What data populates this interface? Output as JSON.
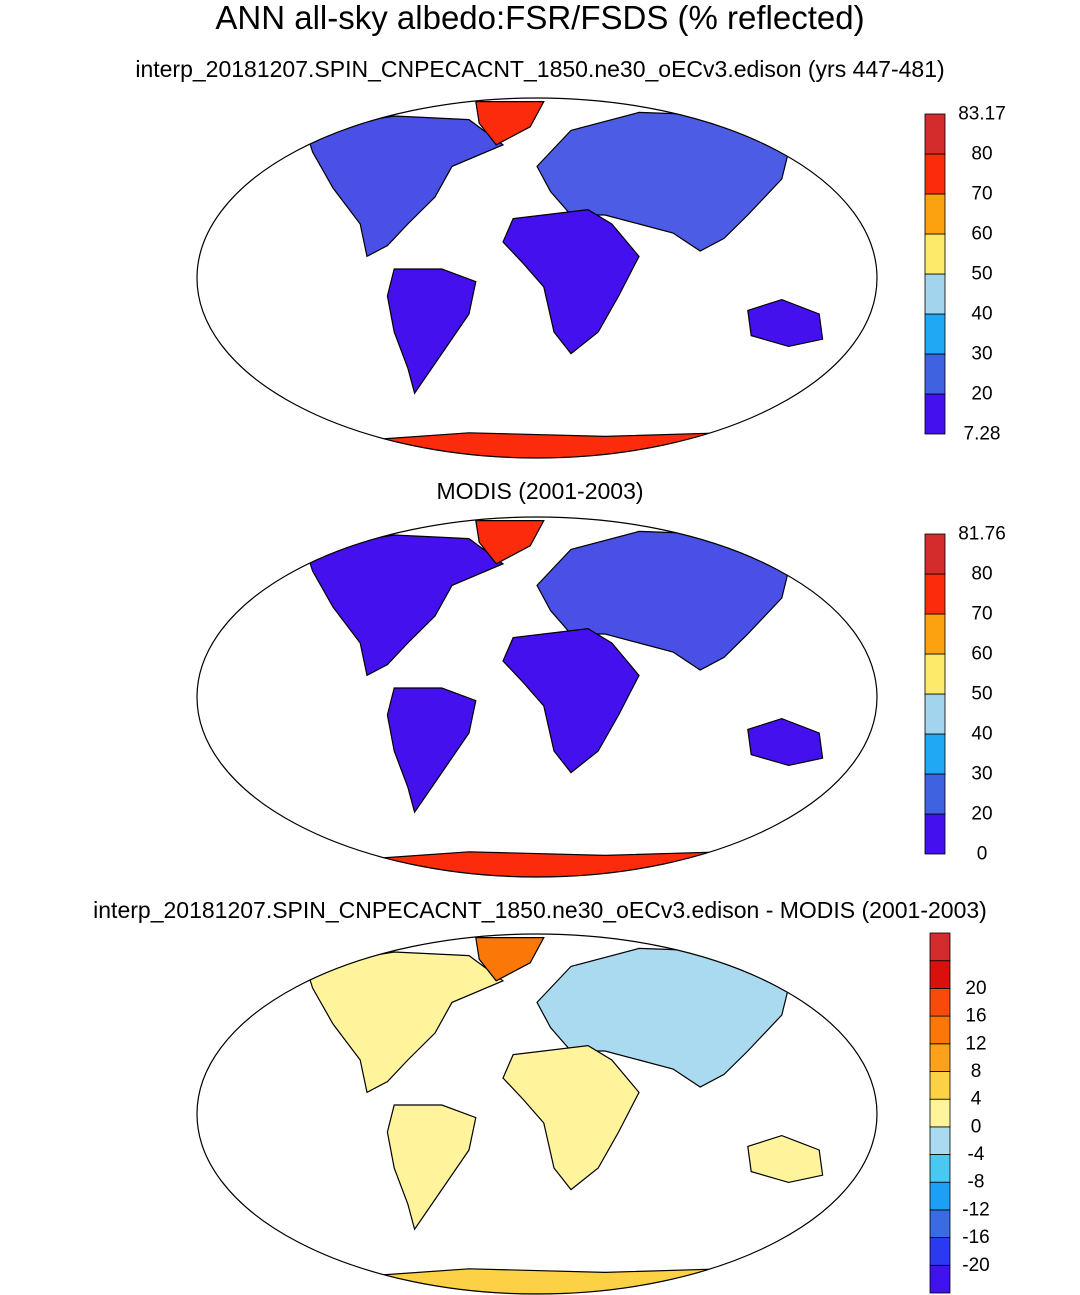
{
  "title": "ANN all-sky albedo:FSR/FSDS (% reflected)",
  "panels": [
    {
      "title": "interp_20181207.SPIN_CNPECACNT_1850.ne30_oECv3.edison (yrs 447-481)",
      "colorbar": {
        "colors": [
          "#4411ee",
          "#3f63e0",
          "#20a8f5",
          "#a2d4ee",
          "#fde96a",
          "#fca10f",
          "#fc2b0b",
          "#d42c2c"
        ],
        "labels": [
          "7.28",
          "20",
          "30",
          "40",
          "50",
          "60",
          "70",
          "80",
          "83.17"
        ]
      }
    },
    {
      "title": "MODIS (2001-2003)",
      "colorbar": {
        "colors": [
          "#4411ee",
          "#3f63e0",
          "#20a8f5",
          "#a2d4ee",
          "#fde96a",
          "#fca10f",
          "#fc2b0b",
          "#d42c2c"
        ],
        "labels": [
          "0",
          "20",
          "30",
          "40",
          "50",
          "60",
          "70",
          "80",
          "81.76"
        ]
      }
    },
    {
      "title": "interp_20181207.SPIN_CNPECACNT_1850.ne30_oECv3.edison - MODIS (2001-2003)",
      "colorbar": {
        "colors": [
          "#4012ee",
          "#2b39f0",
          "#3a6be2",
          "#1d9ff6",
          "#4ac8f2",
          "#a9daef",
          "#fff49c",
          "#fdd146",
          "#fca11a",
          "#fb7808",
          "#f84a0a",
          "#d9100c",
          "#d42c2c"
        ],
        "labels": [
          "-20",
          "-16",
          "-12",
          "-8",
          "-4",
          "0",
          "4",
          "8",
          "12",
          "16",
          "20"
        ]
      }
    }
  ]
}
